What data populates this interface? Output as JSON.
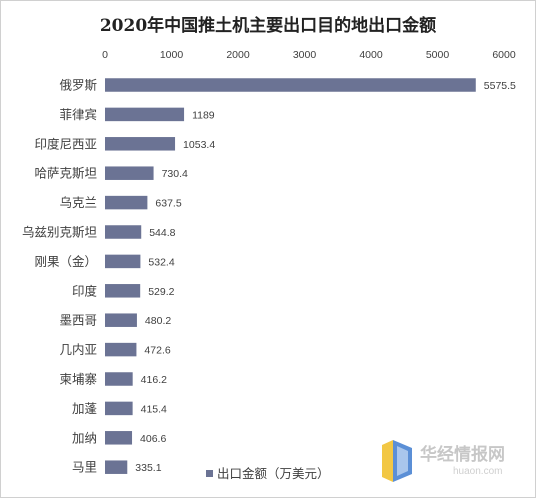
{
  "chart_data": {
    "type": "bar",
    "orientation": "horizontal",
    "title": "2020年中国推土机主要出口目的地出口金额",
    "categories": [
      "俄罗斯",
      "菲律宾",
      "印度尼西亚",
      "哈萨克斯坦",
      "乌克兰",
      "乌兹别克斯坦",
      "刚果（金）",
      "印度",
      "墨西哥",
      "几内亚",
      "柬埔寨",
      "加蓬",
      "加纳",
      "马里"
    ],
    "series": [
      {
        "name": "出口金额（万美元）",
        "values": [
          5575.5,
          1189,
          1053.4,
          730.4,
          637.5,
          544.8,
          532.4,
          529.2,
          480.2,
          472.6,
          416.2,
          415.4,
          406.6,
          335.1
        ],
        "labels": [
          "5575.5",
          "1189",
          "1053.4",
          "730.4",
          "637.5",
          "544.8",
          "532.4",
          "529.2",
          "480.2",
          "472.6",
          "416.2",
          "415.4",
          "406.6",
          "335.1"
        ]
      }
    ],
    "xlim": [
      0,
      6000
    ],
    "x_ticks": [
      0,
      1000,
      2000,
      3000,
      4000,
      5000,
      6000
    ],
    "x_axis_position": "top",
    "grid": false,
    "legend": "bottom",
    "colors": {
      "bar": "#6b7394",
      "text": "#404040",
      "title": "#222222"
    }
  },
  "watermark": {
    "text": "华经情报网",
    "url": "huaon.com",
    "colors": {
      "yellow": "#f2c744",
      "blue": "#5b8fd6",
      "light_blue": "#a9c6ec"
    }
  }
}
